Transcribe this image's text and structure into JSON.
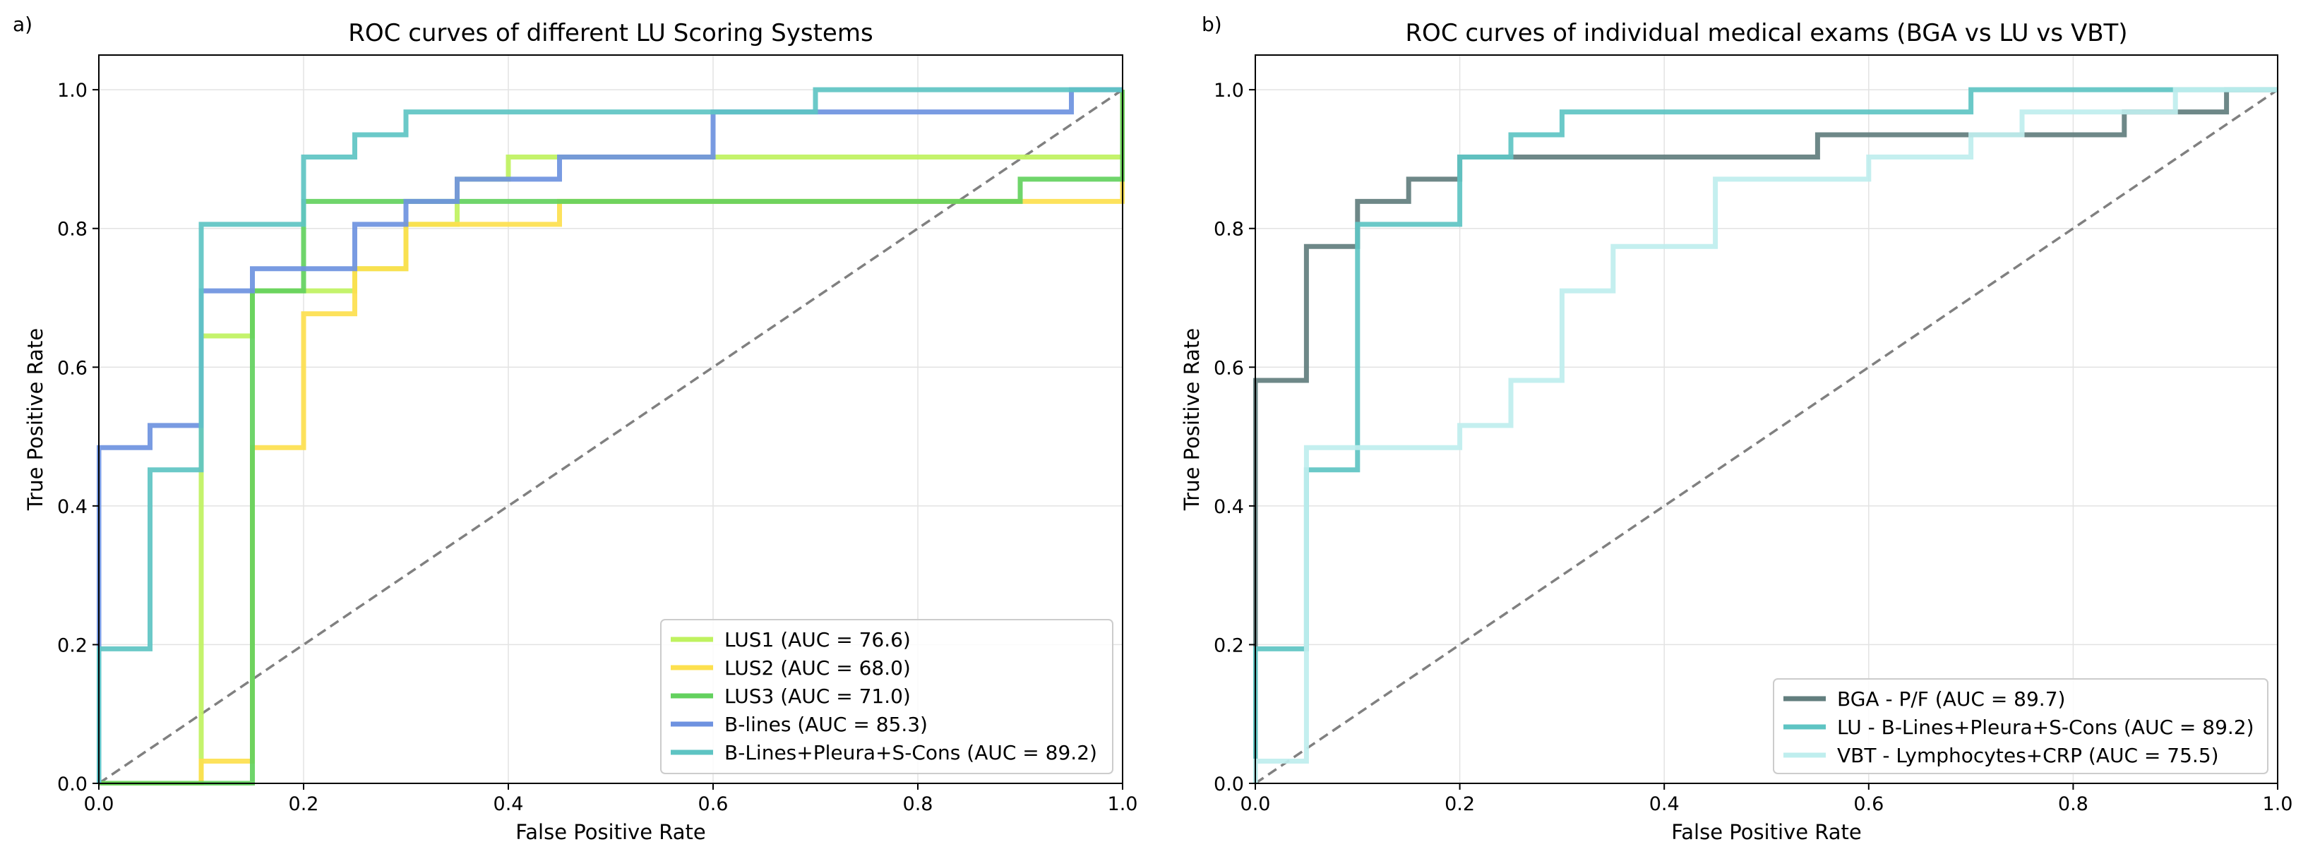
{
  "chart_data": [
    {
      "panel_label": "a)",
      "type": "line",
      "title": "ROC curves of different LU Scoring Systems",
      "xlabel": "False Positive Rate",
      "ylabel": "True Positive Rate",
      "xlim": [
        0,
        1
      ],
      "ylim": [
        0,
        1.05
      ],
      "xticks": [
        0.0,
        0.2,
        0.4,
        0.6,
        0.8,
        1.0
      ],
      "yticks": [
        0.0,
        0.2,
        0.4,
        0.6,
        0.8,
        1.0
      ],
      "tick_labels": [
        "0.0",
        "0.2",
        "0.4",
        "0.6",
        "0.8",
        "1.0"
      ],
      "grid": true,
      "legend_position": "lower-right",
      "diagonal": {
        "x": [
          0,
          1
        ],
        "y": [
          0,
          1
        ],
        "color": "#808080",
        "style": "dashed"
      },
      "series": [
        {
          "name": "LUS1 (AUC = 76.6)",
          "color": "#bff25f",
          "step": "post",
          "x": [
            0,
            0.1,
            0.1,
            0.15,
            0.15,
            0.2,
            0.25,
            0.3,
            0.35,
            0.4,
            0.45,
            1.0
          ],
          "y": [
            0,
            0,
            0.645,
            0.645,
            0.71,
            0.71,
            0.742,
            0.806,
            0.871,
            0.903,
            0.903,
            1.0
          ]
        },
        {
          "name": "LUS2 (AUC = 68.0)",
          "color": "#fde04e",
          "step": "post",
          "x": [
            0,
            0.1,
            0.1,
            0.15,
            0.15,
            0.2,
            0.2,
            0.25,
            0.25,
            0.3,
            0.3,
            0.45,
            0.45,
            1.0
          ],
          "y": [
            0,
            0,
            0.032,
            0.032,
            0.484,
            0.516,
            0.677,
            0.677,
            0.742,
            0.742,
            0.806,
            0.806,
            0.839,
            1.0
          ]
        },
        {
          "name": "LUS3 (AUC = 71.0)",
          "color": "#63d15e",
          "step": "post",
          "x": [
            0,
            0.15,
            0.15,
            0.2,
            0.2,
            0.9,
            0.9,
            1.0
          ],
          "y": [
            0,
            0,
            0.71,
            0.71,
            0.839,
            0.839,
            0.871,
            1.0
          ]
        },
        {
          "name": "B-lines (AUC = 85.3)",
          "color": "#6e92e0",
          "step": "post",
          "x": [
            0,
            0,
            0.05,
            0.1,
            0.1,
            0.15,
            0.15,
            0.25,
            0.25,
            0.3,
            0.3,
            0.35,
            0.35,
            0.45,
            0.45,
            0.6,
            0.6,
            0.95,
            0.95,
            1.0
          ],
          "y": [
            0,
            0.484,
            0.516,
            0.516,
            0.71,
            0.71,
            0.742,
            0.742,
            0.806,
            0.806,
            0.839,
            0.839,
            0.871,
            0.871,
            0.903,
            0.903,
            0.968,
            0.968,
            1.0,
            1.0
          ]
        },
        {
          "name": "B-Lines+Pleura+S-Cons (AUC = 89.2)",
          "color": "#5ec4c3",
          "step": "post",
          "x": [
            0,
            0,
            0.05,
            0.05,
            0.1,
            0.1,
            0.2,
            0.2,
            0.25,
            0.25,
            0.3,
            0.3,
            0.7,
            0.7,
            1.0
          ],
          "y": [
            0,
            0.194,
            0.194,
            0.452,
            0.452,
            0.806,
            0.806,
            0.903,
            0.903,
            0.935,
            0.935,
            0.968,
            0.968,
            1.0,
            1.0
          ]
        }
      ]
    },
    {
      "panel_label": "b)",
      "type": "line",
      "title": "ROC curves of individual medical exams (BGA vs LU vs VBT)",
      "xlabel": "False Positive Rate",
      "ylabel": "True Positive Rate",
      "xlim": [
        0,
        1
      ],
      "ylim": [
        0,
        1.05
      ],
      "xticks": [
        0.0,
        0.2,
        0.4,
        0.6,
        0.8,
        1.0
      ],
      "yticks": [
        0.0,
        0.2,
        0.4,
        0.6,
        0.8,
        1.0
      ],
      "tick_labels": [
        "0.0",
        "0.2",
        "0.4",
        "0.6",
        "0.8",
        "1.0"
      ],
      "grid": true,
      "legend_position": "lower-right",
      "diagonal": {
        "x": [
          0,
          1
        ],
        "y": [
          0,
          1
        ],
        "color": "#808080",
        "style": "dashed"
      },
      "series": [
        {
          "name": "BGA - P/F (AUC = 89.7)",
          "color": "#627e7e",
          "step": "post",
          "x": [
            0,
            0,
            0.05,
            0.05,
            0.1,
            0.1,
            0.15,
            0.15,
            0.2,
            0.2,
            0.55,
            0.55,
            0.85,
            0.85,
            0.95,
            0.95,
            1.0
          ],
          "y": [
            0,
            0.581,
            0.581,
            0.774,
            0.774,
            0.839,
            0.839,
            0.871,
            0.871,
            0.903,
            0.903,
            0.935,
            0.935,
            0.968,
            0.968,
            1.0,
            1.0
          ]
        },
        {
          "name": "LU - B-Lines+Pleura+S-Cons (AUC = 89.2)",
          "color": "#5ec4c3",
          "step": "post",
          "x": [
            0,
            0,
            0.05,
            0.05,
            0.1,
            0.1,
            0.2,
            0.2,
            0.25,
            0.25,
            0.3,
            0.3,
            0.7,
            0.7,
            1.0
          ],
          "y": [
            0,
            0.194,
            0.194,
            0.452,
            0.452,
            0.806,
            0.806,
            0.903,
            0.903,
            0.935,
            0.935,
            0.968,
            0.968,
            1.0,
            1.0
          ]
        },
        {
          "name": "VBT - Lymphocytes+CRP (AUC = 75.5)",
          "color": "#bfeeee",
          "step": "post",
          "x": [
            0,
            0,
            0.05,
            0.05,
            0.2,
            0.2,
            0.25,
            0.25,
            0.3,
            0.3,
            0.35,
            0.35,
            0.45,
            0.45,
            0.6,
            0.6,
            0.7,
            0.7,
            0.75,
            0.75,
            0.9,
            0.9,
            1.0
          ],
          "y": [
            0,
            0.032,
            0.032,
            0.484,
            0.484,
            0.516,
            0.516,
            0.581,
            0.581,
            0.71,
            0.71,
            0.774,
            0.774,
            0.871,
            0.871,
            0.903,
            0.903,
            0.935,
            0.935,
            0.968,
            0.968,
            1.0,
            1.0
          ]
        }
      ]
    }
  ]
}
